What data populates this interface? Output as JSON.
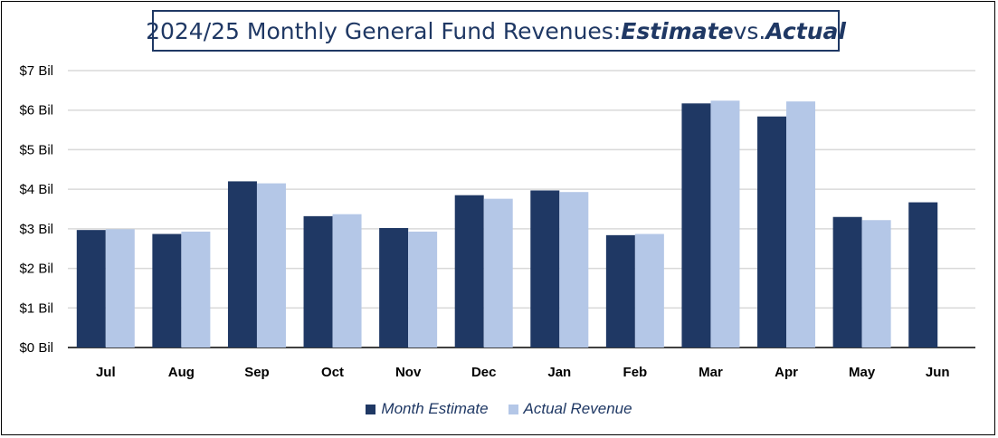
{
  "title": {
    "prefix": "2024/25 Monthly General Fund Revenues: ",
    "estimate_word": "Estimate",
    "middle": " vs. ",
    "actual_word": "Actual"
  },
  "colors": {
    "estimate": "#1f3864",
    "actual": "#b4c7e7",
    "grid": "#d9d9d9"
  },
  "chart_data": {
    "type": "bar",
    "title": "2024/25 Monthly General Fund Revenues: Estimate vs. Actual",
    "categories": [
      "Jul",
      "Aug",
      "Sep",
      "Oct",
      "Nov",
      "Dec",
      "Jan",
      "Feb",
      "Mar",
      "Apr",
      "May",
      "Jun"
    ],
    "series": [
      {
        "name": "Month Estimate",
        "values": [
          2.97,
          2.87,
          4.2,
          3.32,
          3.02,
          3.85,
          3.97,
          2.84,
          6.17,
          5.84,
          3.3,
          3.67
        ]
      },
      {
        "name": "Actual Revenue",
        "values": [
          2.99,
          2.93,
          4.15,
          3.37,
          2.93,
          3.76,
          3.93,
          2.87,
          6.24,
          6.22,
          3.22,
          null
        ]
      }
    ],
    "ylim": [
      0,
      7
    ],
    "yticks": [
      "$0 Bil",
      "$1 Bil",
      "$2 Bil",
      "$3 Bil",
      "$4 Bil",
      "$5 Bil",
      "$6 Bil",
      "$7 Bil"
    ],
    "xlabel": "",
    "ylabel": "",
    "grid": true,
    "legend": "bottom"
  }
}
